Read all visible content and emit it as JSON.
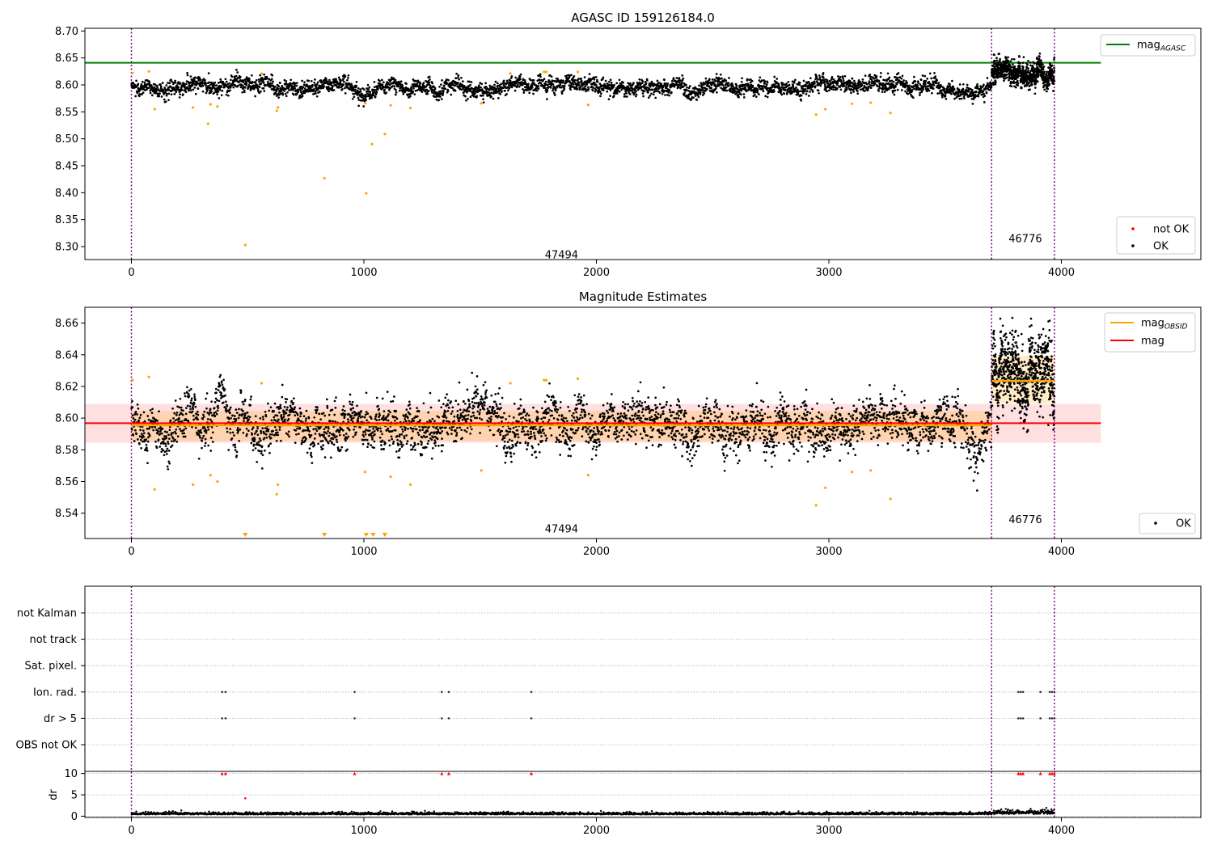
{
  "chart_data": [
    {
      "type": "scatter",
      "title": "AGASC ID 159126184.0",
      "xlim": [
        -200,
        4600
      ],
      "ylim": [
        8.276,
        8.705
      ],
      "xticks": [
        "0",
        "1000",
        "2000",
        "3000",
        "4000"
      ],
      "yticks": [
        "8.30",
        "8.35",
        "8.40",
        "8.45",
        "8.50",
        "8.55",
        "8.60",
        "8.65",
        "8.70"
      ],
      "grid": false,
      "legends": [
        {
          "placement": "top-right",
          "entries": [
            {
              "label": "mag",
              "sub": "AGASC",
              "color": "#008000",
              "kind": "line"
            }
          ]
        },
        {
          "placement": "bottom-right",
          "entries": [
            {
              "label": "not OK",
              "color": "#ff0000",
              "kind": "dot"
            },
            {
              "label": "OK",
              "color": "#000000",
              "kind": "dot"
            }
          ]
        }
      ],
      "reference_lines": [
        {
          "name": "mag_AGASC",
          "y": 8.641,
          "x_range": [
            -200,
            4170
          ],
          "color": "#008000"
        }
      ],
      "obsid_boundaries": [
        0,
        3700,
        3970
      ],
      "obsid_labels": [
        {
          "text": "47494",
          "x": 1850,
          "y": 8.285
        },
        {
          "text": "46776",
          "x": 3845,
          "y": 8.315
        }
      ],
      "segments": [
        {
          "x_range": [
            0,
            3700
          ],
          "center": 8.596,
          "spread": 0.0095
        },
        {
          "x_range": [
            3700,
            3970
          ],
          "center": 8.624,
          "spread": 0.014
        }
      ],
      "outliers": [
        {
          "x": 5,
          "y": 8.622
        },
        {
          "x": 75,
          "y": 8.625
        },
        {
          "x": 100,
          "y": 8.555
        },
        {
          "x": 265,
          "y": 8.558
        },
        {
          "x": 330,
          "y": 8.528
        },
        {
          "x": 340,
          "y": 8.564
        },
        {
          "x": 370,
          "y": 8.56
        },
        {
          "x": 490,
          "y": 8.303
        },
        {
          "x": 560,
          "y": 8.621
        },
        {
          "x": 625,
          "y": 8.552
        },
        {
          "x": 630,
          "y": 8.558
        },
        {
          "x": 830,
          "y": 8.427
        },
        {
          "x": 1005,
          "y": 8.566
        },
        {
          "x": 1010,
          "y": 8.399
        },
        {
          "x": 1035,
          "y": 8.49
        },
        {
          "x": 1090,
          "y": 8.509
        },
        {
          "x": 1115,
          "y": 8.562
        },
        {
          "x": 1200,
          "y": 8.557
        },
        {
          "x": 1505,
          "y": 8.566
        },
        {
          "x": 1630,
          "y": 8.621
        },
        {
          "x": 1775,
          "y": 8.624
        },
        {
          "x": 1785,
          "y": 8.624
        },
        {
          "x": 1920,
          "y": 8.624
        },
        {
          "x": 1965,
          "y": 8.563
        },
        {
          "x": 2945,
          "y": 8.545
        },
        {
          "x": 2985,
          "y": 8.555
        },
        {
          "x": 3100,
          "y": 8.565
        },
        {
          "x": 3180,
          "y": 8.567
        },
        {
          "x": 3265,
          "y": 8.548
        }
      ]
    },
    {
      "type": "scatter",
      "title": "Magnitude Estimates",
      "xlim": [
        -200,
        4600
      ],
      "ylim": [
        8.524,
        8.67
      ],
      "xticks": [
        "0",
        "1000",
        "2000",
        "3000",
        "4000"
      ],
      "yticks": [
        "8.54",
        "8.56",
        "8.58",
        "8.60",
        "8.62",
        "8.64",
        "8.66"
      ],
      "grid": false,
      "legends": [
        {
          "placement": "top-right",
          "entries": [
            {
              "label": "mag",
              "sub": "OBSID",
              "color": "#ffa500",
              "kind": "line"
            },
            {
              "label": "mag",
              "sub": "",
              "color": "#ff0000",
              "kind": "line"
            }
          ]
        },
        {
          "placement": "bottom-right",
          "entries": [
            {
              "label": "OK",
              "color": "#000000",
              "kind": "dot"
            }
          ]
        }
      ],
      "reference_lines": [
        {
          "name": "mag",
          "y": 8.5968,
          "x_range": [
            -200,
            4170
          ],
          "color": "#ff0000"
        }
      ],
      "bands": [
        {
          "y_range": [
            8.5845,
            8.609
          ],
          "x_range": [
            -200,
            4170
          ],
          "color": "#ff0000",
          "opacity": 0.12
        },
        {
          "y_range": [
            8.5855,
            8.6045
          ],
          "x_range": [
            0,
            3700
          ],
          "color": "#ffa500",
          "opacity": 0.22
        },
        {
          "y_range": [
            8.6095,
            8.6395
          ],
          "x_range": [
            3700,
            3970
          ],
          "color": "#ffa500",
          "opacity": 0.22
        }
      ],
      "segment_lines": [
        {
          "name": "mag_OBSID",
          "y": 8.5955,
          "x_range": [
            0,
            3700
          ],
          "color": "#ffa500"
        },
        {
          "name": "mag_OBSID",
          "y": 8.6235,
          "x_range": [
            3700,
            3970
          ],
          "color": "#ffa500"
        }
      ],
      "obsid_boundaries": [
        0,
        3700,
        3970
      ],
      "obsid_labels": [
        {
          "text": "47494",
          "x": 1850,
          "y": 8.53
        },
        {
          "text": "46776",
          "x": 3845,
          "y": 8.536
        }
      ],
      "segments": [
        {
          "x_range": [
            0,
            3700
          ],
          "center": 8.596,
          "spread": 0.0095
        },
        {
          "x_range": [
            3700,
            3970
          ],
          "center": 8.624,
          "spread": 0.014
        }
      ],
      "outliers": [
        {
          "x": 5,
          "y": 8.624
        },
        {
          "x": 75,
          "y": 8.626
        },
        {
          "x": 100,
          "y": 8.555
        },
        {
          "x": 265,
          "y": 8.558
        },
        {
          "x": 340,
          "y": 8.564
        },
        {
          "x": 370,
          "y": 8.56
        },
        {
          "x": 560,
          "y": 8.622
        },
        {
          "x": 625,
          "y": 8.552
        },
        {
          "x": 630,
          "y": 8.558
        },
        {
          "x": 1005,
          "y": 8.566
        },
        {
          "x": 1115,
          "y": 8.563
        },
        {
          "x": 1200,
          "y": 8.558
        },
        {
          "x": 1505,
          "y": 8.567
        },
        {
          "x": 1630,
          "y": 8.622
        },
        {
          "x": 1775,
          "y": 8.624
        },
        {
          "x": 1785,
          "y": 8.624
        },
        {
          "x": 1920,
          "y": 8.625
        },
        {
          "x": 1965,
          "y": 8.564
        },
        {
          "x": 2945,
          "y": 8.545
        },
        {
          "x": 2985,
          "y": 8.556
        },
        {
          "x": 3100,
          "y": 8.566
        },
        {
          "x": 3180,
          "y": 8.567
        },
        {
          "x": 3265,
          "y": 8.549
        }
      ],
      "offscale_markers": [
        {
          "x": 490
        },
        {
          "x": 830
        },
        {
          "x": 1010
        },
        {
          "x": 1040
        },
        {
          "x": 1090
        }
      ]
    },
    {
      "type": "scatter",
      "title": "",
      "xlim": [
        -200,
        4600
      ],
      "xticks": [
        "0",
        "1000",
        "2000",
        "3000",
        "4000"
      ],
      "flag_rows": [
        "not Kalman",
        "not track",
        "Sat. pixel.",
        "Ion. rad.",
        "dr > 5",
        "OBS not OK"
      ],
      "grid": true,
      "flag_points": [
        {
          "row": "Ion. rad.",
          "x": [
            390,
            405,
            960,
            1335,
            1365,
            1720,
            3815,
            3825,
            3835,
            3910,
            3950,
            3960,
            3970
          ]
        },
        {
          "row": "dr > 5",
          "x": [
            390,
            405,
            960,
            1335,
            1365,
            1720,
            3815,
            3825,
            3835,
            3910,
            3950,
            3960,
            3970
          ]
        }
      ],
      "dr_panel": {
        "ylabel": "dr",
        "ylim": [
          -0.3,
          10.5
        ],
        "yticks": [
          "0",
          "5",
          "10"
        ],
        "dr_baseline": 0.4,
        "capped_markers": {
          "y": 10,
          "color": "#ff0000",
          "x": [
            390,
            405,
            960,
            1335,
            1365,
            1720,
            3815,
            3825,
            3835,
            3910,
            3950,
            3960,
            3970
          ]
        },
        "extra_points": [
          {
            "x": 490,
            "y": 4.2,
            "color": "#ff0000"
          }
        ],
        "obsid_boundaries": [
          0,
          3700,
          3970
        ]
      }
    }
  ]
}
